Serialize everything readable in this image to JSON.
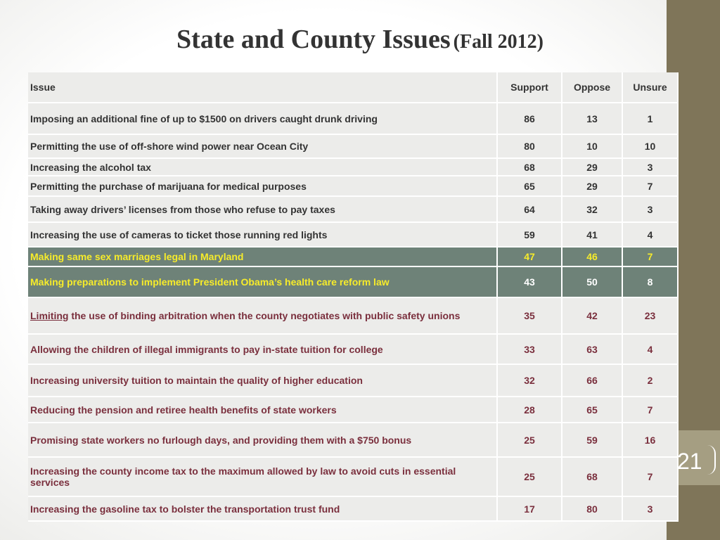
{
  "title": {
    "main": "State and County Issues",
    "sub": "(Fall 2012)"
  },
  "page_number": "21",
  "table": {
    "headers": [
      "Issue",
      "Support",
      "Oppose",
      "Unsure"
    ],
    "rows": [
      {
        "issue": "Imposing an additional fine of up to $1500 on drivers caught drunk driving",
        "support": "86",
        "oppose": "13",
        "unsure": "1"
      },
      {
        "issue": "Permitting the use of off-shore wind power near Ocean City",
        "support": "80",
        "oppose": "10",
        "unsure": "10"
      },
      {
        "issue": "Increasing the alcohol tax",
        "support": "68",
        "oppose": "29",
        "unsure": "3"
      },
      {
        "issue": "Permitting the purchase of marijuana for medical purposes",
        "support": "65",
        "oppose": "29",
        "unsure": "7"
      },
      {
        "issue": "Taking away drivers’ licenses from those who refuse to pay taxes",
        "support": "64",
        "oppose": "32",
        "unsure": "3"
      },
      {
        "issue": "Increasing the use of cameras to ticket those running red lights",
        "support": "59",
        "oppose": "41",
        "unsure": "4"
      },
      {
        "issue": "Making same sex marriages legal in Maryland",
        "support": "47",
        "oppose": "46",
        "unsure": "7"
      },
      {
        "issue": "Making preparations to implement President Obama’s health care reform law",
        "support": "43",
        "oppose": "50",
        "unsure": "8"
      },
      {
        "issue_emphasis": "Limiting",
        "issue_rest": " the use of binding arbitration when the county negotiates with public safety unions",
        "support": "35",
        "oppose": "42",
        "unsure": "23"
      },
      {
        "issue": "Allowing the children of illegal immigrants to pay in-state tuition for college",
        "support": "33",
        "oppose": "63",
        "unsure": "4"
      },
      {
        "issue": "Increasing university tuition to maintain the quality of higher education",
        "support": "32",
        "oppose": "66",
        "unsure": "2"
      },
      {
        "issue": "Reducing the pension and retiree health benefits of state workers",
        "support": "28",
        "oppose": "65",
        "unsure": "7"
      },
      {
        "issue": "Promising state workers no furlough days, and providing them with a $750 bonus",
        "support": "25",
        "oppose": "59",
        "unsure": "16"
      },
      {
        "issue": "Increasing the county income tax to the maximum allowed by law to avoid cuts in essential services",
        "support": "25",
        "oppose": "68",
        "unsure": "7"
      },
      {
        "issue": "Increasing the gasoline tax to bolster the transportation trust fund",
        "support": "17",
        "oppose": "80",
        "unsure": "3"
      }
    ]
  },
  "colors": {
    "side_bar": "#7f7559",
    "page_tab": "#a59e82",
    "highlight_row": "#6e8278",
    "highlight_text": "#f7ec2a",
    "row_bg": "#ececea",
    "issue_text": "#7a2f3d"
  }
}
